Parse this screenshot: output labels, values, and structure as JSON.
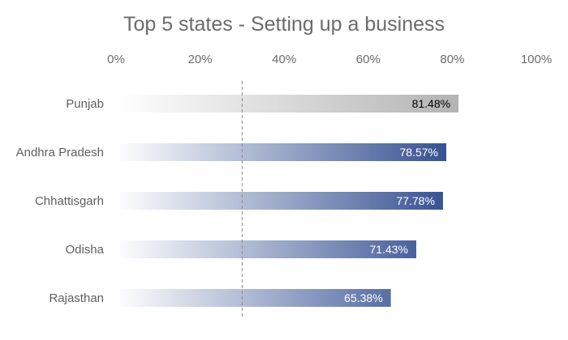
{
  "chart_data": {
    "type": "bar",
    "orientation": "horizontal",
    "title": "Top 5 states - Setting up a business",
    "categories": [
      "Punjab",
      "Andhra Pradesh",
      "Chhattisgarh",
      "Odisha",
      "Rajasthan"
    ],
    "values": [
      81.48,
      78.57,
      77.78,
      71.43,
      65.38
    ],
    "value_labels": [
      "81.48%",
      "78.57%",
      "77.78%",
      "71.43%",
      "65.38%"
    ],
    "xlim": [
      0,
      100
    ],
    "x_ticks": [
      "0%",
      "20%",
      "40%",
      "60%",
      "80%",
      "100%"
    ],
    "axis_position": "top",
    "reference_line": {
      "value": 30,
      "style": "dashed"
    },
    "grid": false,
    "legend": "none",
    "colors": {
      "highlight_bar": "#b3b3b3",
      "bar": "#2f4b8e",
      "highlight_label": "#000000",
      "bar_label": "#ffffff",
      "fade_start": "#ffffff"
    }
  }
}
